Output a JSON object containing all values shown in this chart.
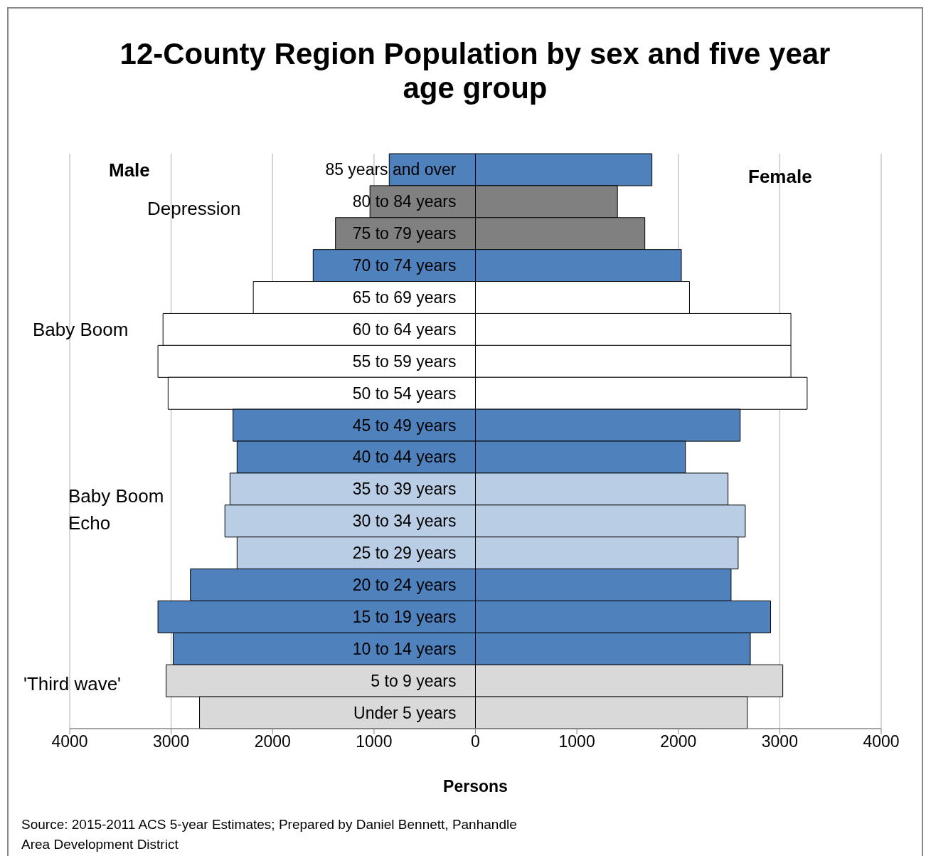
{
  "chart_data": {
    "type": "bar",
    "orientation": "horizontal",
    "title": "12-County Region Population by sex and five year age group",
    "xlabel": "Persons",
    "categories": [
      "85 years and over",
      "80 to 84 years",
      "75 to 79 years",
      "70 to 74 years",
      "65 to 69 years",
      "60 to 64 years",
      "55 to 59 years",
      "50 to 54 years",
      "45 to 49 years",
      "40 to 44 years",
      "35 to 39 years",
      "30 to 34 years",
      "25 to 29 years",
      "20 to 24 years",
      "15 to 19 years",
      "10 to 14 years",
      "5 to 9 years",
      "Under 5 years"
    ],
    "series": [
      {
        "colors": [
          "#4f81bd",
          "#808080",
          "#808080",
          "#4f81bd",
          "#ffffff",
          "#ffffff",
          "#ffffff",
          "#ffffff",
          "#4f81bd",
          "#4f81bd",
          "#b9cde5",
          "#b9cde5",
          "#b9cde5",
          "#4f81bd",
          "#4f81bd",
          "#4f81bd",
          "#d9d9d9",
          "#d9d9d9"
        ],
        "values": [
          -850,
          -1040,
          -1380,
          -1600,
          -2190,
          -3080,
          -3130,
          -3030,
          -2390,
          -2350,
          -2420,
          -2470,
          -2350,
          -2810,
          -3130,
          -2980,
          -3050,
          -2720
        ]
      },
      {
        "colors": [
          "#4f81bd",
          "#808080",
          "#808080",
          "#4f81bd",
          "#ffffff",
          "#ffffff",
          "#ffffff",
          "#ffffff",
          "#4f81bd",
          "#4f81bd",
          "#b9cde5",
          "#b9cde5",
          "#b9cde5",
          "#4f81bd",
          "#4f81bd",
          "#4f81bd",
          "#d9d9d9",
          "#d9d9d9"
        ],
        "values": [
          1740,
          1400,
          1670,
          2030,
          2110,
          3110,
          3110,
          3270,
          2610,
          2070,
          2490,
          2660,
          2590,
          2520,
          2910,
          2710,
          3030,
          2680
        ]
      }
    ],
    "xlim": [
      -4000,
      4000
    ],
    "xticks": [
      {
        "value": -4000,
        "label": "4000"
      },
      {
        "value": -3000,
        "label": "3000"
      },
      {
        "value": -2000,
        "label": "2000"
      },
      {
        "value": -1000,
        "label": "1000"
      },
      0,
      1000,
      2000,
      3000,
      4000
    ],
    "grid": "x",
    "stacked": true,
    "annotations": [
      "Male",
      "Female",
      "Depression",
      "Baby Boom",
      "Baby Boom Echo",
      "'Third wave'",
      "Source: 2015-2011 ACS 5-year Estimates; Prepared by Daniel Bennett, Panhandle Area Development District"
    ]
  }
}
